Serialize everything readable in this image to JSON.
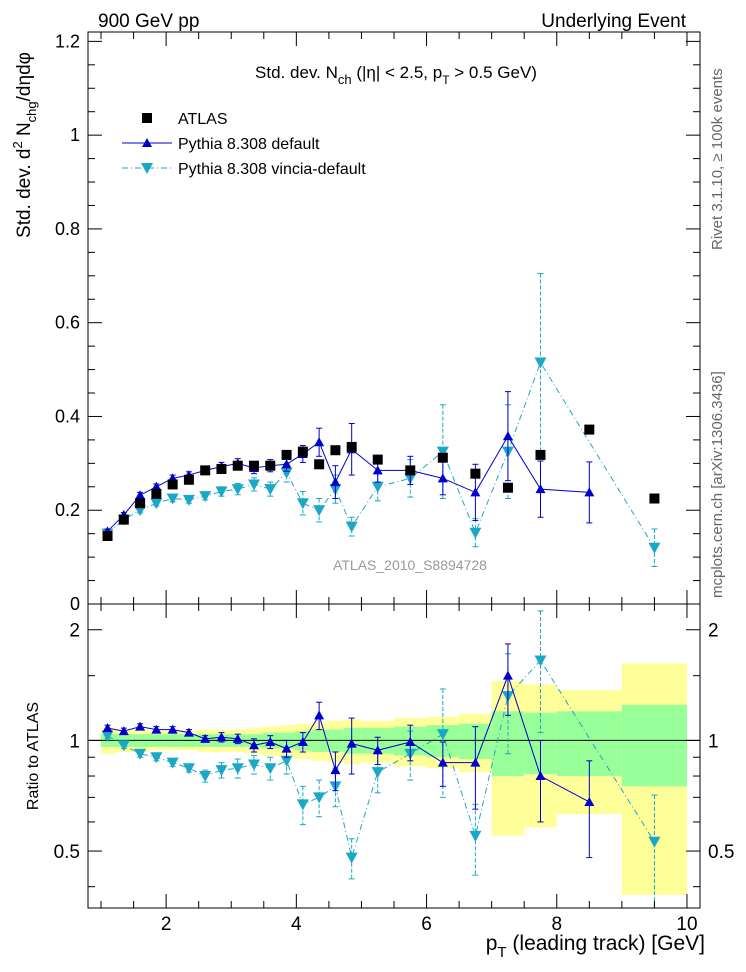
{
  "header": {
    "left": "900 GeV pp",
    "right": "Underlying Event"
  },
  "side_text": {
    "upper": "Rivet 3.1.10, ≥ 100k events",
    "lower": "mcplots.cern.ch [arXiv:1306.3436]"
  },
  "chart_data": [
    {
      "type": "scatter",
      "title": "Std. dev. N_ch (|η| < 2.5, p_T > 0.5 GeV)",
      "ylabel": "Std. dev. d²N_chg/dηdφ",
      "xlim": [
        0.8,
        10.2
      ],
      "ylim": [
        0,
        1.22
      ],
      "yticks": [
        0,
        0.2,
        0.4,
        0.6,
        0.8,
        1,
        1.2
      ],
      "watermark": "ATLAS_2010_S8894728",
      "legend": {
        "position": "top-left"
      },
      "series": [
        {
          "name": "ATLAS",
          "style": "markers",
          "marker": "square",
          "color": "#000000",
          "x": [
            1.1,
            1.35,
            1.6,
            1.85,
            2.1,
            2.35,
            2.6,
            2.85,
            3.1,
            3.35,
            3.6,
            3.85,
            4.1,
            4.35,
            4.6,
            4.85,
            5.25,
            5.75,
            6.25,
            6.75,
            7.25,
            7.75,
            8.5,
            9.5
          ],
          "y": [
            0.145,
            0.18,
            0.215,
            0.235,
            0.255,
            0.265,
            0.285,
            0.288,
            0.295,
            0.295,
            0.295,
            0.318,
            0.325,
            0.298,
            0.328,
            0.335,
            0.308,
            0.285,
            0.312,
            0.278,
            0.248,
            0.318,
            0.372,
            0.225
          ]
        },
        {
          "name": "Pythia 8.308 default",
          "style": "solid",
          "marker": "triangle-up",
          "color": "#0000cc",
          "x": [
            1.1,
            1.35,
            1.6,
            1.85,
            2.1,
            2.35,
            2.6,
            2.85,
            3.1,
            3.35,
            3.6,
            3.85,
            4.1,
            4.35,
            4.6,
            4.85,
            5.25,
            5.75,
            6.25,
            6.75,
            7.25,
            7.75,
            8.5
          ],
          "y": [
            0.155,
            0.19,
            0.232,
            0.25,
            0.268,
            0.275,
            0.285,
            0.293,
            0.3,
            0.29,
            0.295,
            0.298,
            0.32,
            0.345,
            0.26,
            0.33,
            0.285,
            0.285,
            0.268,
            0.238,
            0.358,
            0.245,
            0.238
          ],
          "err": [
            0.005,
            0.005,
            0.006,
            0.006,
            0.007,
            0.007,
            0.008,
            0.009,
            0.01,
            0.012,
            0.013,
            0.015,
            0.018,
            0.03,
            0.035,
            0.055,
            0.025,
            0.03,
            0.035,
            0.06,
            0.095,
            0.06,
            0.065
          ]
        },
        {
          "name": "Pythia 8.308 vincia-default",
          "style": "dash-dot",
          "marker": "triangle-down",
          "color": "#1ba8c6",
          "x": [
            1.1,
            1.35,
            1.6,
            1.85,
            2.1,
            2.35,
            2.6,
            2.85,
            3.1,
            3.35,
            3.6,
            3.85,
            4.1,
            4.35,
            4.6,
            4.85,
            5.25,
            5.75,
            6.25,
            6.75,
            7.25,
            7.75,
            9.5
          ],
          "y": [
            0.15,
            0.18,
            0.2,
            0.215,
            0.225,
            0.222,
            0.23,
            0.24,
            0.245,
            0.255,
            0.245,
            0.28,
            0.215,
            0.2,
            0.245,
            0.165,
            0.25,
            0.268,
            0.325,
            0.152,
            0.325,
            0.515,
            0.12
          ],
          "err": [
            0.005,
            0.005,
            0.006,
            0.006,
            0.007,
            0.007,
            0.008,
            0.01,
            0.012,
            0.014,
            0.015,
            0.02,
            0.025,
            0.025,
            0.03,
            0.02,
            0.03,
            0.04,
            0.1,
            0.03,
            0.1,
            0.19,
            0.04
          ]
        }
      ]
    },
    {
      "type": "scatter",
      "ylabel": "Ratio to ATLAS",
      "xlabel": "p_T (leading track) [GeV]",
      "xlim": [
        0.8,
        10.2
      ],
      "ylim": [
        0.35,
        2.35
      ],
      "log_y": true,
      "xticks": [
        2,
        4,
        6,
        8,
        10
      ],
      "yticks": [
        0.5,
        1,
        2
      ],
      "reference": 1,
      "bands": [
        {
          "x0": 1.0,
          "x1": 1.23,
          "g": 0.04,
          "y": 0.08
        },
        {
          "x0": 1.23,
          "x1": 1.48,
          "g": 0.04,
          "y": 0.07
        },
        {
          "x0": 1.48,
          "x1": 1.73,
          "g": 0.04,
          "y": 0.07
        },
        {
          "x0": 1.73,
          "x1": 1.98,
          "g": 0.04,
          "y": 0.06
        },
        {
          "x0": 1.98,
          "x1": 2.23,
          "g": 0.04,
          "y": 0.06
        },
        {
          "x0": 2.23,
          "x1": 2.48,
          "g": 0.04,
          "y": 0.06
        },
        {
          "x0": 2.48,
          "x1": 2.73,
          "g": 0.04,
          "y": 0.07
        },
        {
          "x0": 2.73,
          "x1": 2.98,
          "g": 0.04,
          "y": 0.07
        },
        {
          "x0": 2.98,
          "x1": 3.23,
          "g": 0.04,
          "y": 0.07
        },
        {
          "x0": 3.23,
          "x1": 3.48,
          "g": 0.04,
          "y": 0.08
        },
        {
          "x0": 3.48,
          "x1": 3.73,
          "g": 0.05,
          "y": 0.09
        },
        {
          "x0": 3.73,
          "x1": 3.98,
          "g": 0.05,
          "y": 0.1
        },
        {
          "x0": 3.98,
          "x1": 4.23,
          "g": 0.06,
          "y": 0.11
        },
        {
          "x0": 4.23,
          "x1": 4.48,
          "g": 0.07,
          "y": 0.12
        },
        {
          "x0": 4.48,
          "x1": 4.73,
          "g": 0.07,
          "y": 0.13
        },
        {
          "x0": 4.73,
          "x1": 4.98,
          "g": 0.08,
          "y": 0.14
        },
        {
          "x0": 4.98,
          "x1": 5.5,
          "g": 0.08,
          "y": 0.13
        },
        {
          "x0": 5.5,
          "x1": 6.0,
          "g": 0.09,
          "y": 0.15
        },
        {
          "x0": 6.0,
          "x1": 6.5,
          "g": 0.1,
          "y": 0.16
        },
        {
          "x0": 6.5,
          "x1": 7.0,
          "g": 0.11,
          "y": 0.18
        },
        {
          "x0": 7.0,
          "x1": 7.5,
          "g": 0.2,
          "y": 0.45
        },
        {
          "x0": 7.5,
          "x1": 8.0,
          "g": 0.19,
          "y": 0.42
        },
        {
          "x0": 8.0,
          "x1": 9.0,
          "g": 0.2,
          "y": 0.37
        },
        {
          "x0": 9.0,
          "x1": 10.0,
          "g": 0.25,
          "y": 0.62
        }
      ],
      "series": [
        {
          "name": "Pythia 8.308 default",
          "style": "solid",
          "marker": "triangle-up",
          "color": "#0000cc",
          "x": [
            1.1,
            1.35,
            1.6,
            1.85,
            2.1,
            2.35,
            2.6,
            2.85,
            3.1,
            3.35,
            3.6,
            3.85,
            4.1,
            4.35,
            4.6,
            4.85,
            5.25,
            5.75,
            6.25,
            6.75,
            7.25,
            7.75,
            8.5
          ],
          "y": [
            1.08,
            1.06,
            1.09,
            1.07,
            1.07,
            1.05,
            1.01,
            1.02,
            1.01,
            0.97,
            0.99,
            0.95,
            0.99,
            1.17,
            0.83,
            0.98,
            0.94,
            0.99,
            0.87,
            0.87,
            1.5,
            0.8,
            0.68
          ],
          "err": [
            0.02,
            0.02,
            0.02,
            0.02,
            0.02,
            0.02,
            0.02,
            0.03,
            0.03,
            0.04,
            0.04,
            0.05,
            0.06,
            0.1,
            0.1,
            0.17,
            0.08,
            0.11,
            0.12,
            0.22,
            0.33,
            0.2,
            0.2
          ]
        },
        {
          "name": "Pythia 8.308 vincia-default",
          "style": "dash-dot",
          "marker": "triangle-down",
          "color": "#1ba8c6",
          "x": [
            1.1,
            1.35,
            1.6,
            1.85,
            2.1,
            2.35,
            2.6,
            2.85,
            3.1,
            3.35,
            3.6,
            3.85,
            4.1,
            4.35,
            4.6,
            4.85,
            5.25,
            5.75,
            6.25,
            6.75,
            7.25,
            7.75,
            9.5
          ],
          "y": [
            1.03,
            0.97,
            0.92,
            0.9,
            0.87,
            0.84,
            0.8,
            0.83,
            0.84,
            0.86,
            0.84,
            0.88,
            0.67,
            0.7,
            0.75,
            0.48,
            0.82,
            0.92,
            1.04,
            0.55,
            1.32,
            1.65,
            0.53
          ],
          "err": [
            0.02,
            0.02,
            0.02,
            0.02,
            0.02,
            0.02,
            0.03,
            0.04,
            0.05,
            0.05,
            0.06,
            0.07,
            0.08,
            0.08,
            0.09,
            0.06,
            0.1,
            0.14,
            0.34,
            0.12,
            0.4,
            0.6,
            0.18
          ]
        }
      ]
    }
  ]
}
